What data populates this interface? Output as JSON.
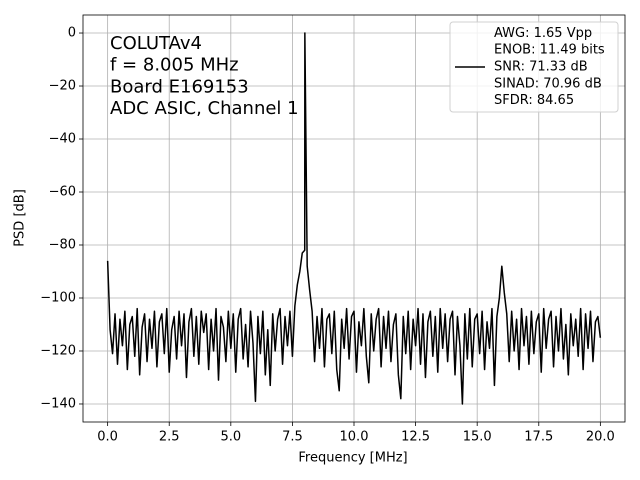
{
  "chart_data": {
    "type": "line",
    "annotation": [
      "COLUTAv4",
      "f = 8.005 MHz",
      "Board E169153",
      "ADC ASIC, Channel 1"
    ],
    "xlabel": "Frequency [MHz]",
    "ylabel": "PSD [dB]",
    "xlim": [
      -1,
      21
    ],
    "ylim": [
      -146.8,
      6.8
    ],
    "xticks": [
      {
        "value": 0,
        "label": "0.0"
      },
      2.5,
      {
        "value": 5,
        "label": "5.0"
      },
      7.5,
      {
        "value": 10,
        "label": "10.0"
      },
      12.5,
      {
        "value": 15,
        "label": "15.0"
      },
      17.5,
      {
        "value": 20,
        "label": "20.0"
      }
    ],
    "yticks": [
      0,
      {
        "value": -20,
        "label": "−20"
      },
      {
        "value": -40,
        "label": "−40"
      },
      {
        "value": -60,
        "label": "−60"
      },
      {
        "value": -80,
        "label": "−80"
      },
      {
        "value": -100,
        "label": "−100"
      },
      {
        "value": -120,
        "label": "−120"
      },
      {
        "value": -140,
        "label": "−140"
      }
    ],
    "grid": true,
    "legend": "upper right",
    "x": [
      0.0,
      0.1,
      0.2,
      0.3,
      0.4,
      0.5,
      0.6,
      0.7,
      0.8,
      0.9,
      1.0,
      1.1,
      1.2,
      1.3,
      1.4,
      1.5,
      1.6,
      1.7,
      1.8,
      1.9,
      2.0,
      2.1,
      2.2,
      2.3,
      2.4,
      2.5,
      2.6,
      2.7,
      2.8,
      2.9,
      3.0,
      3.1,
      3.2,
      3.3,
      3.4,
      3.5,
      3.6,
      3.7,
      3.8,
      3.9,
      4.0,
      4.1,
      4.2,
      4.3,
      4.4,
      4.5,
      4.6,
      4.7,
      4.8,
      4.9,
      5.0,
      5.1,
      5.2,
      5.3,
      5.4,
      5.5,
      5.6,
      5.7,
      5.8,
      5.9,
      6.0,
      6.1,
      6.2,
      6.3,
      6.4,
      6.5,
      6.6,
      6.7,
      6.8,
      6.9,
      7.0,
      7.1,
      7.2,
      7.3,
      7.4,
      7.5,
      7.6,
      7.7,
      7.8,
      7.9,
      8.0,
      8.005,
      8.1,
      8.2,
      8.3,
      8.4,
      8.5,
      8.6,
      8.7,
      8.8,
      8.9,
      9.0,
      9.1,
      9.2,
      9.3,
      9.4,
      9.5,
      9.6,
      9.7,
      9.8,
      9.9,
      10.0,
      10.1,
      10.2,
      10.3,
      10.4,
      10.5,
      10.6,
      10.7,
      10.8,
      10.9,
      11.0,
      11.1,
      11.2,
      11.3,
      11.4,
      11.5,
      11.6,
      11.7,
      11.8,
      11.9,
      12.0,
      12.1,
      12.2,
      12.3,
      12.4,
      12.5,
      12.6,
      12.7,
      12.8,
      12.9,
      13.0,
      13.1,
      13.2,
      13.3,
      13.4,
      13.5,
      13.6,
      13.7,
      13.8,
      13.9,
      14.0,
      14.1,
      14.2,
      14.3,
      14.4,
      14.5,
      14.6,
      14.7,
      14.8,
      14.9,
      15.0,
      15.1,
      15.2,
      15.3,
      15.4,
      15.5,
      15.6,
      15.7,
      15.8,
      15.9,
      16.0,
      16.1,
      16.2,
      16.3,
      16.4,
      16.5,
      16.6,
      16.7,
      16.8,
      16.9,
      17.0,
      17.1,
      17.2,
      17.3,
      17.4,
      17.5,
      17.6,
      17.7,
      17.8,
      17.9,
      18.0,
      18.1,
      18.2,
      18.3,
      18.4,
      18.5,
      18.6,
      18.7,
      18.8,
      18.9,
      19.0,
      19.1,
      19.2,
      19.3,
      19.4,
      19.5,
      19.6,
      19.7,
      19.8,
      19.9,
      20.0
    ],
    "series": [
      {
        "name": [
          "AWG: 1.65 Vpp",
          "ENOB: 11.49 bits",
          "SNR: 71.33 dB",
          "SINAD: 70.96 dB",
          "SFDR: 84.65"
        ],
        "color": "#000000",
        "values": [
          -86,
          -112,
          -121,
          -106,
          -125,
          -108,
          -118,
          -105,
          -127,
          -110,
          -107,
          -122,
          -104,
          -129,
          -111,
          -106,
          -124,
          -108,
          -119,
          -105,
          -126,
          -109,
          -106,
          -121,
          -104,
          -128,
          -112,
          -107,
          -123,
          -105,
          -118,
          -106,
          -130,
          -109,
          -104,
          -122,
          -107,
          -125,
          -105,
          -113,
          -106,
          -127,
          -108,
          -120,
          -104,
          -131,
          -107,
          -111,
          -124,
          -105,
          -119,
          -106,
          -128,
          -108,
          -104,
          -123,
          -110,
          -126,
          -105,
          -117,
          -139,
          -107,
          -121,
          -105,
          -129,
          -112,
          -133,
          -106,
          -120,
          -108,
          -104,
          -125,
          -107,
          -118,
          -105,
          -122,
          -103,
          -95,
          -90,
          -83,
          -82,
          0,
          -88,
          -97,
          -105,
          -124,
          -107,
          -119,
          -104,
          -126,
          -108,
          -106,
          -121,
          -105,
          -127,
          -135,
          -108,
          -119,
          -104,
          -123,
          -107,
          -105,
          -128,
          -109,
          -118,
          -104,
          -122,
          -132,
          -106,
          -120,
          -108,
          -104,
          -126,
          -107,
          -119,
          -105,
          -124,
          -110,
          -106,
          -129,
          -138,
          -107,
          -121,
          -105,
          -127,
          -108,
          -118,
          -104,
          -125,
          -106,
          -130,
          -109,
          -105,
          -122,
          -107,
          -128,
          -104,
          -119,
          -106,
          -124,
          -108,
          -105,
          -129,
          -107,
          -118,
          -140,
          -106,
          -123,
          -104,
          -126,
          -108,
          -106,
          -121,
          -105,
          -127,
          -109,
          -119,
          -104,
          -133,
          -107,
          -100,
          -88,
          -98,
          -106,
          -124,
          -105,
          -120,
          -108,
          -127,
          -104,
          -118,
          -107,
          -125,
          -105,
          -121,
          -109,
          -106,
          -128,
          -104,
          -119,
          -108,
          -105,
          -126,
          -107,
          -120,
          -104,
          -123,
          -110,
          -129,
          -106,
          -118,
          -108,
          -122,
          -104,
          -127,
          -106,
          -119,
          -105,
          -124,
          -109,
          -107,
          -115
        ]
      }
    ]
  }
}
